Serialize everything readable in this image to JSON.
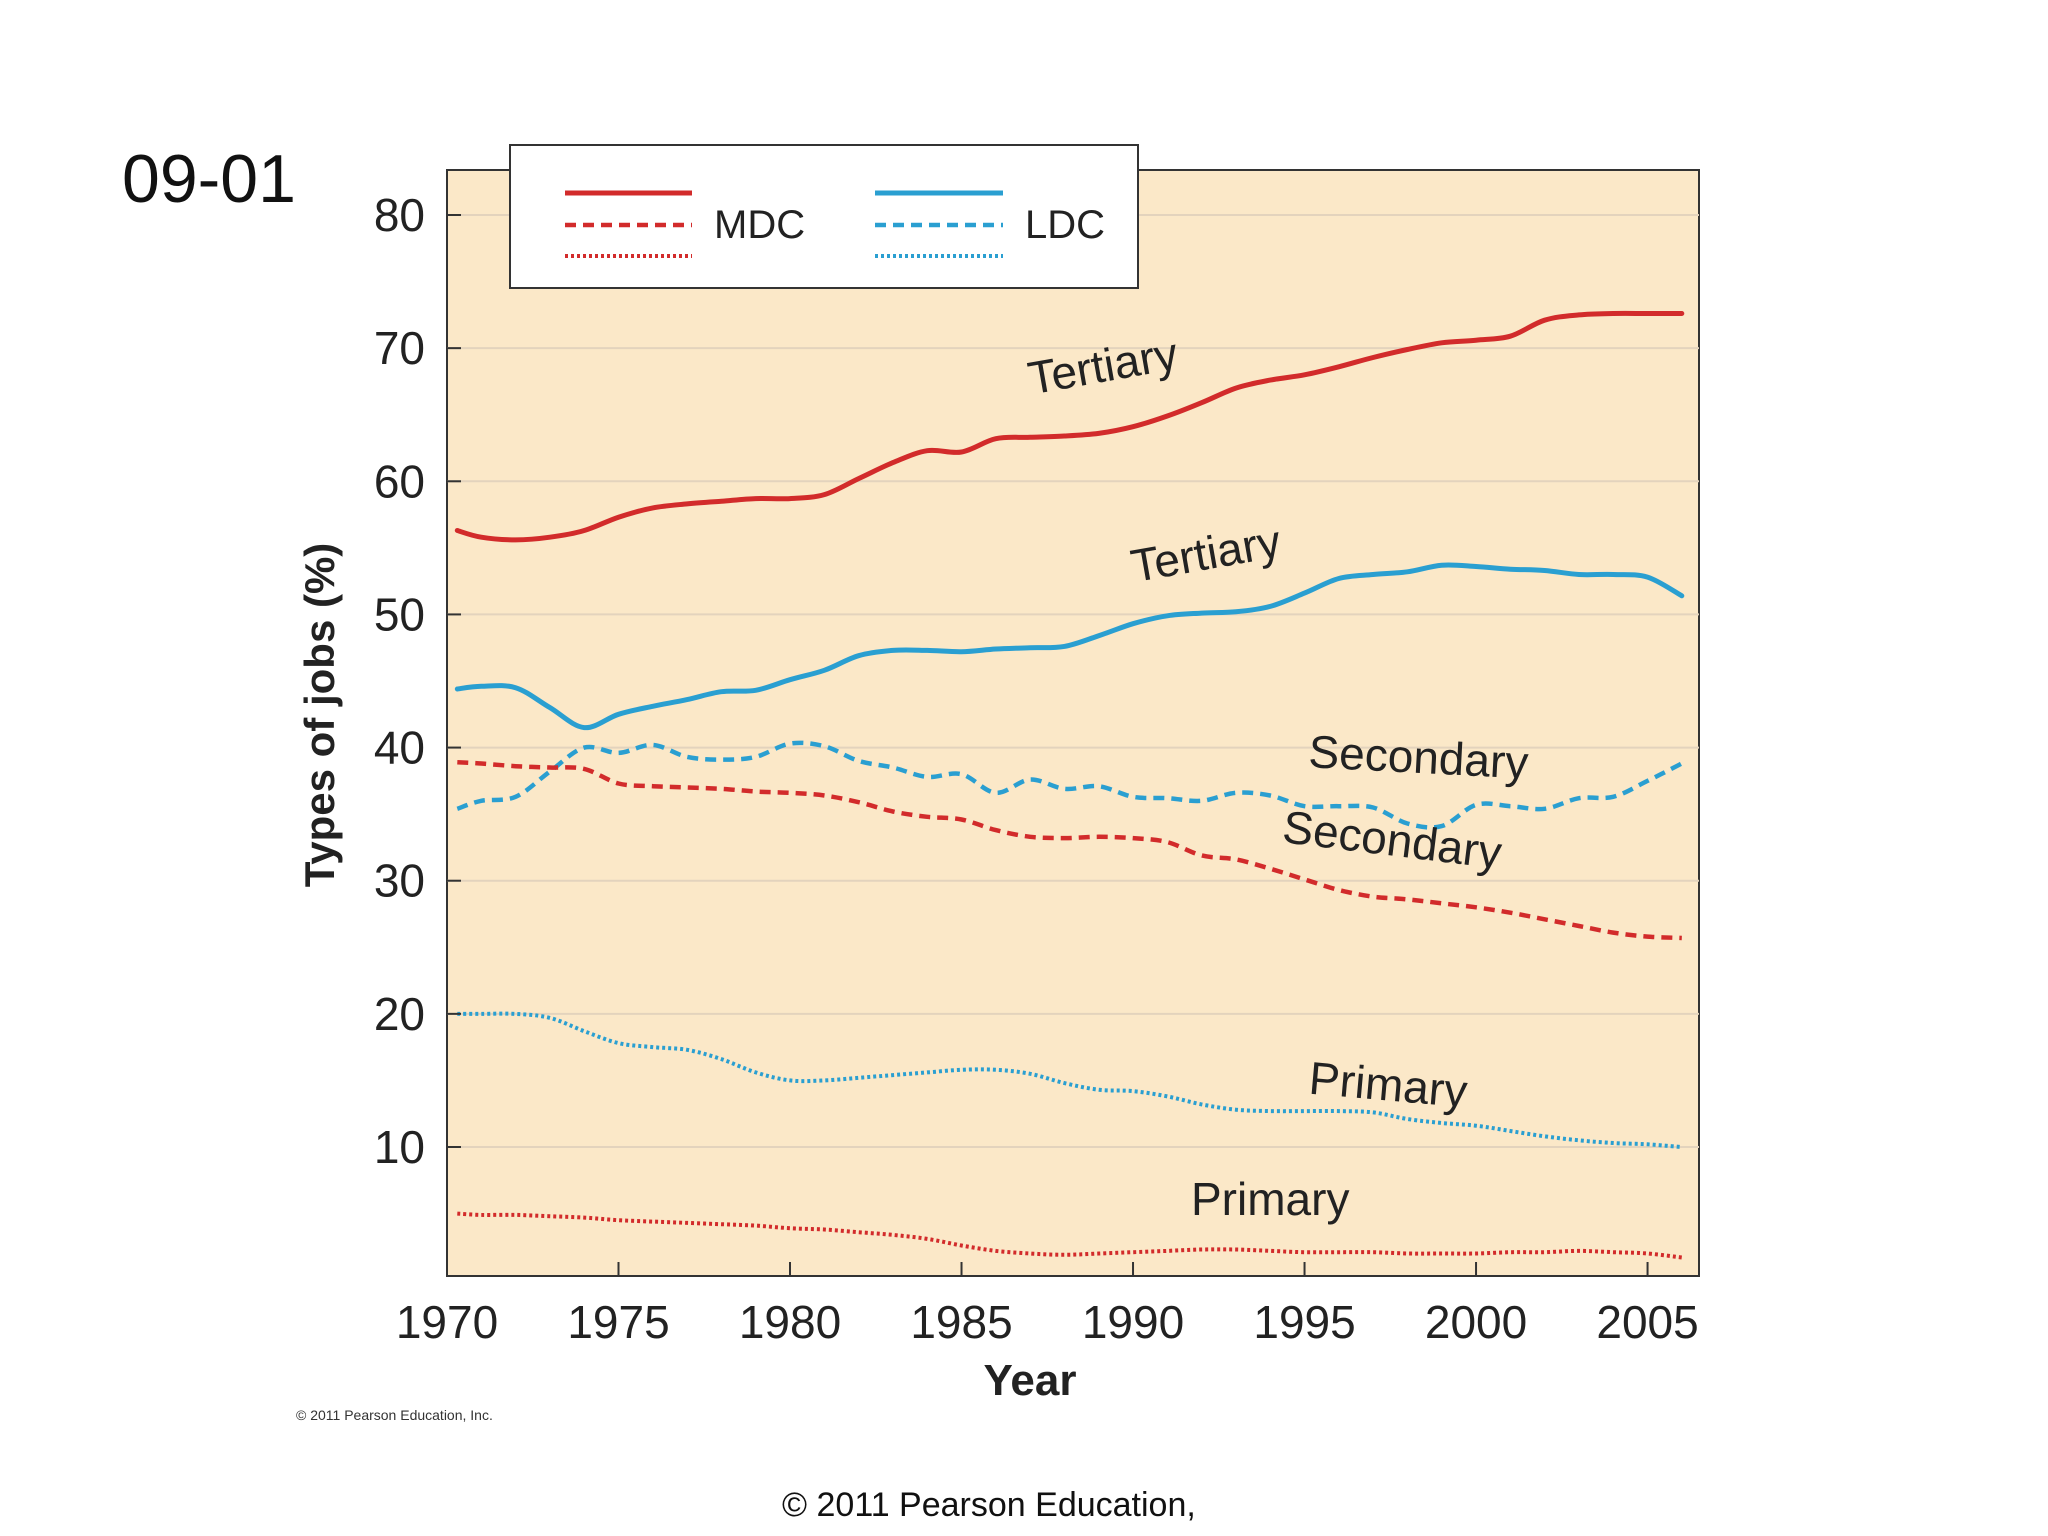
{
  "slide": {
    "label": "09-01",
    "footer": "© 2011 Pearson Education,"
  },
  "colors": {
    "mdc": "#d22b2b",
    "ldc": "#2a9fd1",
    "plot_bg": "#fbe8c8",
    "grid": "#e3d3bd",
    "axis": "#333333"
  },
  "chart_data": {
    "type": "line",
    "title": "",
    "xlabel": "Year",
    "ylabel": "Types of jobs (%)",
    "xlim": [
      1970,
      2006.5
    ],
    "ylim": [
      0,
      80
    ],
    "xticks": [
      1970,
      1975,
      1980,
      1985,
      1990,
      1995,
      2000,
      2005
    ],
    "yticks": [
      10,
      20,
      30,
      40,
      50,
      60,
      70,
      80
    ],
    "grid": true,
    "legend": {
      "position": "top-left",
      "entries": [
        {
          "group": "MDC",
          "label": "MDC",
          "color": "#d22b2b",
          "styles": [
            "solid",
            "dashed",
            "dotted"
          ]
        },
        {
          "group": "LDC",
          "label": "LDC",
          "color": "#2a9fd1",
          "styles": [
            "solid",
            "dashed",
            "dotted"
          ]
        }
      ]
    },
    "series": [
      {
        "name": "MDC Tertiary",
        "group": "MDC",
        "style": "solid",
        "color": "#d22b2b",
        "label": {
          "text": "Tertiary",
          "x": 1989.2,
          "y": 67.5,
          "rotate": -10
        },
        "x": [
          1970.3,
          1971,
          1972,
          1973,
          1974,
          1975,
          1976,
          1977,
          1978,
          1979,
          1980,
          1981,
          1982,
          1983,
          1984,
          1985,
          1986,
          1987,
          1988,
          1989,
          1990,
          1991,
          1992,
          1993,
          1994,
          1995,
          1996,
          1997,
          1998,
          1999,
          2000,
          2001,
          2002,
          2003,
          2004,
          2005,
          2006
        ],
        "y": [
          56.3,
          55.8,
          55.6,
          55.8,
          56.3,
          57.3,
          58.0,
          58.3,
          58.5,
          58.7,
          58.7,
          59.0,
          60.2,
          61.4,
          62.3,
          62.2,
          63.2,
          63.3,
          63.4,
          63.6,
          64.1,
          64.9,
          65.9,
          67.0,
          67.6,
          68.0,
          68.6,
          69.3,
          69.9,
          70.4,
          70.6,
          70.9,
          72.1,
          72.5,
          72.6,
          72.6,
          72.6
        ]
      },
      {
        "name": "LDC Tertiary",
        "group": "LDC",
        "style": "solid",
        "color": "#2a9fd1",
        "label": {
          "text": "Tertiary",
          "x": 1992.2,
          "y": 53.4,
          "rotate": -10
        },
        "x": [
          1970.3,
          1971,
          1972,
          1973,
          1974,
          1975,
          1976,
          1977,
          1978,
          1979,
          1980,
          1981,
          1982,
          1983,
          1984,
          1985,
          1986,
          1987,
          1988,
          1989,
          1990,
          1991,
          1992,
          1993,
          1994,
          1995,
          1996,
          1997,
          1998,
          1999,
          2000,
          2001,
          2002,
          2003,
          2004,
          2005,
          2006
        ],
        "y": [
          44.4,
          44.6,
          44.5,
          43.0,
          41.5,
          42.5,
          43.1,
          43.6,
          44.2,
          44.3,
          45.1,
          45.8,
          46.9,
          47.3,
          47.3,
          47.2,
          47.4,
          47.5,
          47.6,
          48.4,
          49.3,
          49.9,
          50.1,
          50.2,
          50.6,
          51.6,
          52.7,
          53.0,
          53.2,
          53.7,
          53.6,
          53.4,
          53.3,
          53.0,
          53.0,
          52.8,
          51.4
        ]
      },
      {
        "name": "LDC Secondary",
        "group": "LDC",
        "style": "dashed",
        "color": "#2a9fd1",
        "label": {
          "text": "Secondary",
          "x": 1998.3,
          "y": 38.1,
          "rotate": 3
        },
        "x": [
          1970.3,
          1971,
          1972,
          1973,
          1974,
          1975,
          1976,
          1977,
          1978,
          1979,
          1980,
          1981,
          1982,
          1983,
          1984,
          1985,
          1986,
          1987,
          1988,
          1989,
          1990,
          1991,
          1992,
          1993,
          1994,
          1995,
          1996,
          1997,
          1998,
          1999,
          2000,
          2001,
          2002,
          2003,
          2004,
          2005,
          2006
        ],
        "y": [
          35.4,
          36.0,
          36.3,
          38.2,
          40.0,
          39.6,
          40.2,
          39.3,
          39.1,
          39.3,
          40.3,
          40.1,
          39.0,
          38.5,
          37.8,
          38.0,
          36.6,
          37.6,
          36.9,
          37.1,
          36.3,
          36.2,
          36.0,
          36.6,
          36.4,
          35.6,
          35.6,
          35.5,
          34.3,
          34.1,
          35.7,
          35.6,
          35.4,
          36.2,
          36.3,
          37.5,
          38.8
        ]
      },
      {
        "name": "MDC Secondary",
        "group": "MDC",
        "style": "dashed",
        "color": "#d22b2b",
        "label": {
          "text": "Secondary",
          "x": 1997.5,
          "y": 31.9,
          "rotate": 7
        },
        "x": [
          1970.3,
          1971,
          1972,
          1973,
          1974,
          1975,
          1976,
          1977,
          1978,
          1979,
          1980,
          1981,
          1982,
          1983,
          1984,
          1985,
          1986,
          1987,
          1988,
          1989,
          1990,
          1991,
          1992,
          1993,
          1994,
          1995,
          1996,
          1997,
          1998,
          1999,
          2000,
          2001,
          2002,
          2003,
          2004,
          2005,
          2006
        ],
        "y": [
          38.9,
          38.8,
          38.6,
          38.5,
          38.4,
          37.3,
          37.1,
          37.0,
          36.9,
          36.7,
          36.6,
          36.4,
          35.9,
          35.2,
          34.8,
          34.6,
          33.8,
          33.3,
          33.2,
          33.3,
          33.2,
          32.9,
          31.9,
          31.6,
          30.9,
          30.1,
          29.3,
          28.8,
          28.6,
          28.3,
          28.0,
          27.6,
          27.1,
          26.6,
          26.1,
          25.8,
          25.7
        ]
      },
      {
        "name": "LDC Primary",
        "group": "LDC",
        "style": "dotted",
        "color": "#2a9fd1",
        "label": {
          "text": "Primary",
          "x": 1997.4,
          "y": 13.5,
          "rotate": 5
        },
        "x": [
          1970.3,
          1971,
          1972,
          1973,
          1974,
          1975,
          1976,
          1977,
          1978,
          1979,
          1980,
          1981,
          1982,
          1983,
          1984,
          1985,
          1986,
          1987,
          1988,
          1989,
          1990,
          1991,
          1992,
          1993,
          1994,
          1995,
          1996,
          1997,
          1998,
          1999,
          2000,
          2001,
          2002,
          2003,
          2004,
          2005,
          2006
        ],
        "y": [
          20.0,
          20.0,
          20.0,
          19.7,
          18.7,
          17.8,
          17.5,
          17.3,
          16.6,
          15.6,
          15.0,
          15.0,
          15.2,
          15.4,
          15.6,
          15.8,
          15.8,
          15.5,
          14.8,
          14.3,
          14.2,
          13.8,
          13.2,
          12.8,
          12.7,
          12.7,
          12.7,
          12.6,
          12.1,
          11.8,
          11.6,
          11.2,
          10.8,
          10.5,
          10.3,
          10.2,
          10.0
        ]
      },
      {
        "name": "MDC Primary",
        "group": "MDC",
        "style": "dotted",
        "color": "#d22b2b",
        "label": {
          "text": "Primary",
          "x": 1994.0,
          "y": 4.9,
          "rotate": 0
        },
        "x": [
          1970.3,
          1971,
          1972,
          1973,
          1974,
          1975,
          1976,
          1977,
          1978,
          1979,
          1980,
          1981,
          1982,
          1983,
          1984,
          1985,
          1986,
          1987,
          1988,
          1989,
          1990,
          1991,
          1992,
          1993,
          1994,
          1995,
          1996,
          1997,
          1998,
          1999,
          2000,
          2001,
          2002,
          2003,
          2004,
          2005,
          2006
        ],
        "y": [
          5.0,
          4.9,
          4.9,
          4.8,
          4.7,
          4.5,
          4.4,
          4.3,
          4.2,
          4.1,
          3.9,
          3.8,
          3.6,
          3.4,
          3.1,
          2.6,
          2.2,
          2.0,
          1.9,
          2.0,
          2.1,
          2.2,
          2.3,
          2.3,
          2.2,
          2.1,
          2.1,
          2.1,
          2.0,
          2.0,
          2.0,
          2.1,
          2.1,
          2.2,
          2.1,
          2.0,
          1.7
        ]
      }
    ],
    "credit": "© 2011 Pearson Education, Inc."
  }
}
